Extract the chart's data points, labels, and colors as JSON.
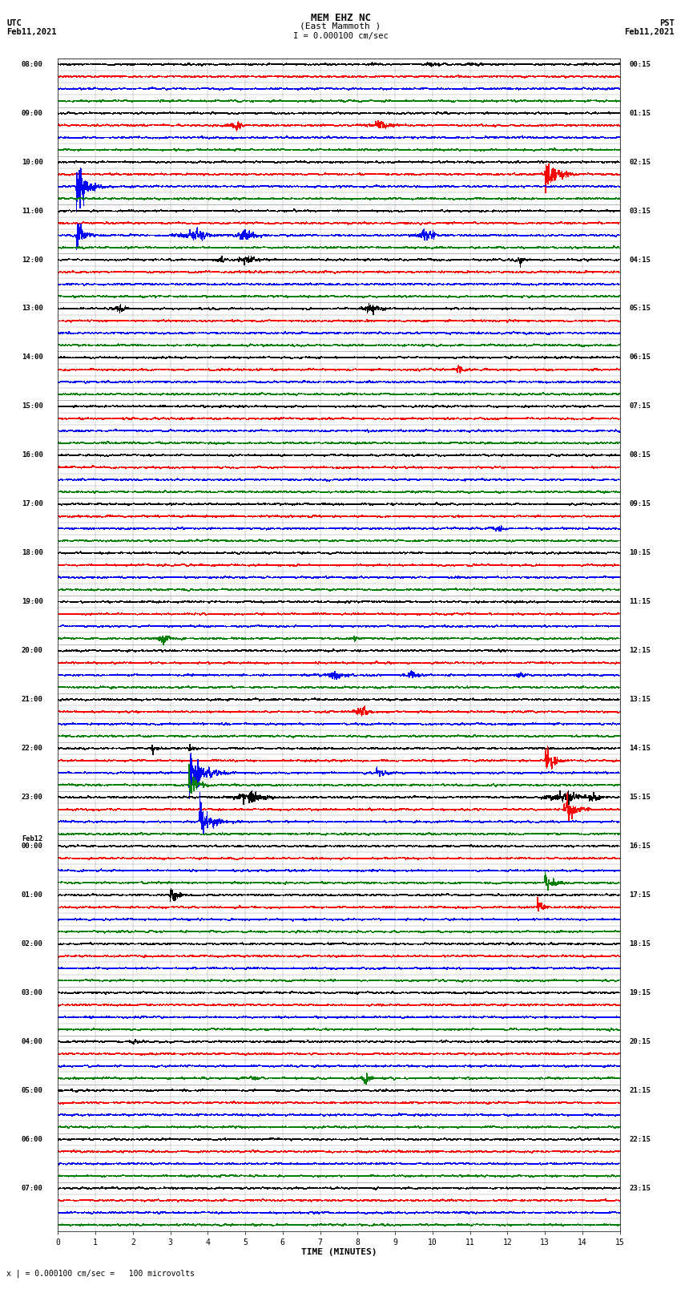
{
  "title_line1": "MEM EHZ NC",
  "title_line2": "(East Mammoth )",
  "scale_label": "I = 0.000100 cm/sec",
  "utc_label1": "UTC",
  "utc_label2": "Feb11,2021",
  "pst_label1": "PST",
  "pst_label2": "Feb11,2021",
  "bottom_label": "x | = 0.000100 cm/sec =   100 microvolts",
  "xlabel": "TIME (MINUTES)",
  "left_times": [
    "08:00",
    "09:00",
    "10:00",
    "11:00",
    "12:00",
    "13:00",
    "14:00",
    "15:00",
    "16:00",
    "17:00",
    "18:00",
    "19:00",
    "20:00",
    "21:00",
    "22:00",
    "23:00",
    "Feb12\n00:00",
    "01:00",
    "02:00",
    "03:00",
    "04:00",
    "05:00",
    "06:00",
    "07:00"
  ],
  "right_times": [
    "00:15",
    "01:15",
    "02:15",
    "03:15",
    "04:15",
    "05:15",
    "06:15",
    "07:15",
    "08:15",
    "09:15",
    "10:15",
    "11:15",
    "12:15",
    "13:15",
    "14:15",
    "15:15",
    "16:15",
    "17:15",
    "18:15",
    "19:15",
    "20:15",
    "21:15",
    "22:15",
    "23:15"
  ],
  "colors": [
    "black",
    "red",
    "blue",
    "green"
  ],
  "n_groups": 24,
  "n_minutes": 15,
  "samples_per_row": 1500,
  "background_color": "white",
  "fig_width": 8.5,
  "fig_height": 16.13
}
